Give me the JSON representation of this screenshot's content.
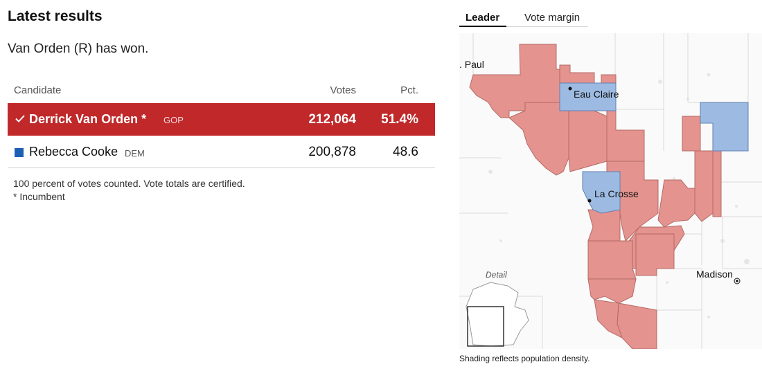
{
  "results": {
    "title": "Latest results",
    "status": "Van Orden (R) has won.",
    "headers": {
      "candidate": "Candidate",
      "votes": "Votes",
      "pct": "Pct."
    },
    "candidates": [
      {
        "name": "Derrick Van Orden *",
        "party": "GOP",
        "votes": "212,064",
        "pct": "51.4%",
        "winner": true,
        "color": "#c0282a"
      },
      {
        "name": "Rebecca Cooke",
        "party": "DEM",
        "votes": "200,878",
        "pct": "48.6",
        "winner": false,
        "color": "#1d5fb4"
      }
    ],
    "footnote_line1": "100 percent of votes counted. Vote totals are certified.",
    "footnote_line2": "* Incumbent"
  },
  "map": {
    "tabs": {
      "leader": "Leader",
      "margin": "Vote margin"
    },
    "labels": {
      "st_paul": ". Paul",
      "eau_claire": "Eau Claire",
      "la_crosse": "La Crosse",
      "madison": "Madison",
      "detail": "Detail"
    },
    "caption": "Shading reflects population density.",
    "colors": {
      "republican": "#e4938f",
      "democrat": "#9dbbe2"
    }
  }
}
